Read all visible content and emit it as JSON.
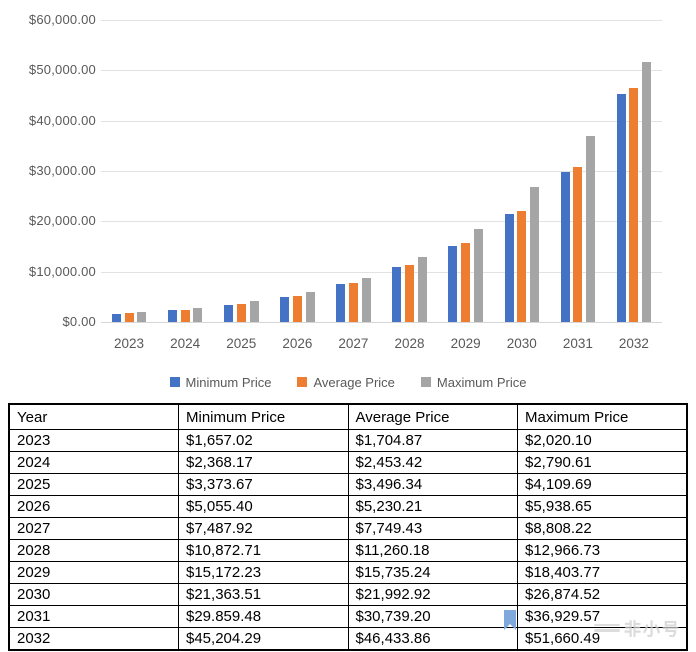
{
  "chart_data": {
    "type": "bar",
    "title": "",
    "xlabel": "",
    "ylabel": "",
    "categories": [
      "2023",
      "2024",
      "2025",
      "2026",
      "2027",
      "2028",
      "2029",
      "2030",
      "2031",
      "2032"
    ],
    "series": [
      {
        "name": "Minimum Price",
        "color": "#4472C4",
        "values": [
          1657.02,
          2368.17,
          3373.67,
          5055.4,
          7487.92,
          10872.71,
          15172.23,
          21363.51,
          29859.48,
          45204.29
        ]
      },
      {
        "name": "Average Price",
        "color": "#ED7D31",
        "values": [
          1704.87,
          2453.42,
          3496.34,
          5230.21,
          7749.43,
          11260.18,
          15735.24,
          21992.92,
          30739.2,
          46433.86
        ]
      },
      {
        "name": "Maximum Price",
        "color": "#A5A5A5",
        "values": [
          2020.1,
          2790.61,
          4109.69,
          5938.65,
          8808.22,
          12966.73,
          18403.77,
          26874.52,
          36929.57,
          51660.49
        ]
      }
    ],
    "ylim": [
      0,
      60000
    ],
    "ytick_step": 10000,
    "ytick_labels": [
      "$0.00",
      "$10,000.00",
      "$20,000.00",
      "$30,000.00",
      "$40,000.00",
      "$50,000.00",
      "$60,000.00"
    ],
    "grid": true,
    "legend_position": "bottom"
  },
  "table": {
    "headers": [
      "Year",
      "Minimum Price",
      "Average Price",
      "Maximum Price"
    ],
    "rows": [
      [
        "2023",
        "$1,657.02",
        "$1,704.87",
        "$2,020.10"
      ],
      [
        "2024",
        "$2,368.17",
        "$2,453.42",
        "$2,790.61"
      ],
      [
        "2025",
        "$3,373.67",
        "$3,496.34",
        "$4,109.69"
      ],
      [
        "2026",
        "$5,055.40",
        "$5,230.21",
        "$5,938.65"
      ],
      [
        "2027",
        "$7,487.92",
        "$7,749.43",
        "$8,808.22"
      ],
      [
        "2028",
        "$10,872.71",
        "$11,260.18",
        "$12,966.73"
      ],
      [
        "2029",
        "$15,172.23",
        "$15,735.24",
        "$18,403.77"
      ],
      [
        "2030",
        "$21,363.51",
        "$21,992.92",
        "$26,874.52"
      ],
      [
        "2031",
        "$29.859.48",
        "$30,739.20",
        "$36,929.57"
      ],
      [
        "2032",
        "$45,204.29",
        "$46,433.86",
        "$51,660.49"
      ]
    ]
  },
  "annotations": {
    "bookmark_color": "#7FA8DC",
    "watermark_text": "非小号"
  }
}
